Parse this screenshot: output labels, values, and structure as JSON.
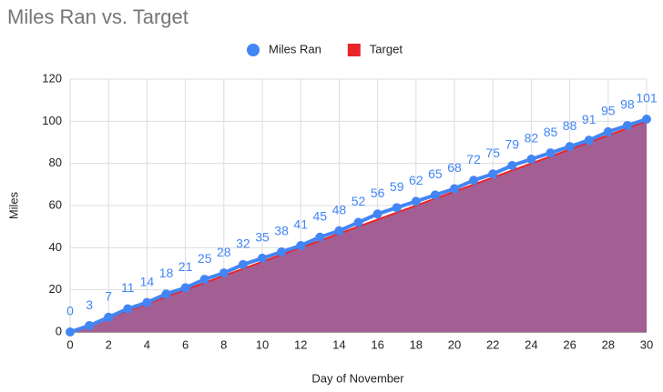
{
  "chart_data": {
    "type": "line",
    "title": "Miles Ran vs. Target",
    "x_label": "Day of November",
    "y_label": "Miles",
    "series": [
      {
        "name": "Miles Ran",
        "color": "#4285f4",
        "markers": true,
        "data_labels": true,
        "x": [
          0,
          1,
          2,
          3,
          4,
          5,
          6,
          7,
          8,
          9,
          10,
          11,
          12,
          13,
          14,
          15,
          16,
          17,
          18,
          19,
          20,
          21,
          22,
          23,
          24,
          25,
          26,
          27,
          28,
          29,
          30
        ],
        "values": [
          0,
          3,
          7,
          11,
          14,
          18,
          21,
          25,
          28,
          32,
          35,
          38,
          41,
          45,
          48,
          52,
          56,
          59,
          62,
          65,
          68,
          72,
          75,
          79,
          82,
          85,
          88,
          91,
          95,
          98,
          101
        ]
      },
      {
        "name": "Target",
        "color": "#e8262a",
        "area_color": "#a35f93",
        "area": true,
        "x": [
          0,
          30
        ],
        "values": [
          0,
          100
        ]
      }
    ],
    "xlim": [
      0,
      30
    ],
    "xticks": [
      0,
      2,
      4,
      6,
      8,
      10,
      12,
      14,
      16,
      18,
      20,
      22,
      24,
      26,
      28,
      30
    ],
    "ylim": [
      0,
      120
    ],
    "yticks": [
      0,
      20,
      40,
      60,
      80,
      100,
      120
    ],
    "grid": true,
    "legend": "top"
  }
}
